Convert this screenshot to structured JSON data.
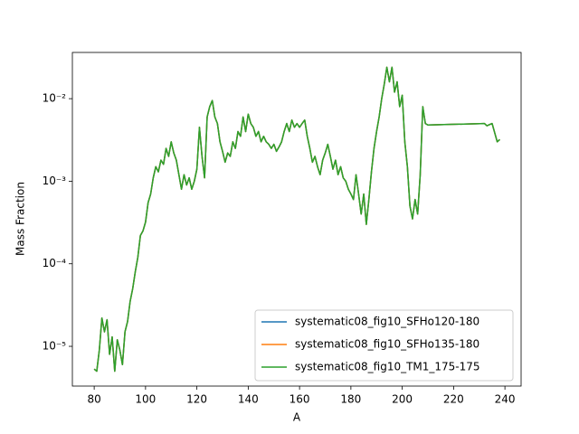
{
  "chart_data": {
    "type": "line",
    "x_label": "A",
    "y_label": "Mass Fraction",
    "yscale": "log",
    "legend": "lower right",
    "xlim": [
      71.5,
      246.3
    ],
    "ylim": [
      3.3e-06,
      0.0363
    ],
    "xticks": [
      80,
      100,
      120,
      140,
      160,
      180,
      200,
      220,
      240
    ],
    "yticks": [
      {
        "value": 1e-05,
        "label": "10⁻⁵"
      },
      {
        "value": 0.0001,
        "label": "10⁻⁴"
      },
      {
        "value": 0.001,
        "label": "10⁻³"
      },
      {
        "value": 0.01,
        "label": "10⁻²"
      }
    ],
    "x": [
      80,
      81,
      82,
      83,
      84,
      85,
      86,
      87,
      88,
      89,
      90,
      91,
      92,
      93,
      94,
      95,
      96,
      97,
      98,
      99,
      100,
      101,
      102,
      103,
      104,
      105,
      106,
      107,
      108,
      109,
      110,
      111,
      112,
      113,
      114,
      115,
      116,
      117,
      118,
      119,
      120,
      121,
      122,
      123,
      124,
      125,
      126,
      127,
      128,
      129,
      130,
      131,
      132,
      133,
      134,
      135,
      136,
      137,
      138,
      139,
      140,
      141,
      142,
      143,
      144,
      145,
      146,
      147,
      148,
      149,
      150,
      151,
      152,
      153,
      154,
      155,
      156,
      157,
      158,
      159,
      160,
      161,
      162,
      163,
      164,
      165,
      166,
      167,
      168,
      169,
      170,
      171,
      172,
      173,
      174,
      175,
      176,
      177,
      178,
      179,
      180,
      181,
      182,
      183,
      184,
      185,
      186,
      187,
      188,
      189,
      190,
      191,
      192,
      193,
      194,
      195,
      196,
      197,
      198,
      199,
      200,
      201,
      202,
      203,
      204,
      205,
      206,
      207,
      208,
      209,
      210,
      232,
      233,
      235,
      237,
      238
    ],
    "series": [
      {
        "name": "systematic08_fig10_SFHo120-180",
        "color": "#1f77b4",
        "values": [
          5.3e-06,
          5e-06,
          9e-06,
          2.2e-05,
          1.5e-05,
          2.1e-05,
          8e-06,
          1.3e-05,
          5e-06,
          1.2e-05,
          9e-06,
          6e-06,
          1.5e-05,
          2e-05,
          3.5e-05,
          5e-05,
          8e-05,
          0.00012,
          0.00022,
          0.00025,
          0.00032,
          0.00055,
          0.0007,
          0.0011,
          0.0015,
          0.0013,
          0.0018,
          0.0016,
          0.0025,
          0.002,
          0.003,
          0.0022,
          0.0018,
          0.0012,
          0.0008,
          0.0012,
          0.0009,
          0.0011,
          0.0008,
          0.001,
          0.0014,
          0.0045,
          0.002,
          0.0011,
          0.006,
          0.008,
          0.0095,
          0.006,
          0.005,
          0.003,
          0.0023,
          0.0017,
          0.0022,
          0.002,
          0.003,
          0.0025,
          0.004,
          0.0035,
          0.006,
          0.004,
          0.0065,
          0.005,
          0.0045,
          0.0035,
          0.004,
          0.003,
          0.0035,
          0.003,
          0.0028,
          0.0025,
          0.0028,
          0.0023,
          0.0026,
          0.003,
          0.004,
          0.005,
          0.004,
          0.0055,
          0.0045,
          0.005,
          0.0045,
          0.005,
          0.0055,
          0.0035,
          0.0025,
          0.0017,
          0.002,
          0.0015,
          0.0012,
          0.0018,
          0.0022,
          0.0028,
          0.002,
          0.0014,
          0.0018,
          0.0012,
          0.0015,
          0.0011,
          0.001,
          0.0008,
          0.0007,
          0.0006,
          0.0012,
          0.0007,
          0.0004,
          0.0007,
          0.0003,
          0.0006,
          0.0013,
          0.0025,
          0.004,
          0.006,
          0.01,
          0.015,
          0.024,
          0.016,
          0.024,
          0.012,
          0.016,
          0.008,
          0.011,
          0.003,
          0.0015,
          0.0005,
          0.00035,
          0.0006,
          0.0004,
          0.0012,
          0.008,
          0.005,
          0.0048,
          0.005,
          0.0047,
          0.005,
          0.003,
          0.0032
        ]
      },
      {
        "name": "systematic08_fig10_SFHo135-180",
        "color": "#ff7f0e",
        "values": [
          5.3e-06,
          5e-06,
          9e-06,
          2.2e-05,
          1.5e-05,
          2.1e-05,
          8e-06,
          1.3e-05,
          5e-06,
          1.2e-05,
          9e-06,
          6e-06,
          1.5e-05,
          2e-05,
          3.5e-05,
          5e-05,
          8e-05,
          0.00012,
          0.00022,
          0.00025,
          0.00032,
          0.00055,
          0.0007,
          0.0011,
          0.0015,
          0.0013,
          0.0018,
          0.0016,
          0.0025,
          0.002,
          0.003,
          0.0022,
          0.0018,
          0.0012,
          0.0008,
          0.0012,
          0.0009,
          0.0011,
          0.0008,
          0.001,
          0.0014,
          0.0045,
          0.002,
          0.0011,
          0.006,
          0.008,
          0.0095,
          0.006,
          0.005,
          0.003,
          0.0023,
          0.0017,
          0.0022,
          0.002,
          0.003,
          0.0025,
          0.004,
          0.0035,
          0.006,
          0.004,
          0.0065,
          0.005,
          0.0045,
          0.0035,
          0.004,
          0.003,
          0.0035,
          0.003,
          0.0028,
          0.0025,
          0.0028,
          0.0023,
          0.0026,
          0.003,
          0.004,
          0.005,
          0.004,
          0.0055,
          0.0045,
          0.005,
          0.0045,
          0.005,
          0.0055,
          0.0035,
          0.0025,
          0.0017,
          0.002,
          0.0015,
          0.0012,
          0.0018,
          0.0022,
          0.0028,
          0.002,
          0.0014,
          0.0018,
          0.0012,
          0.0015,
          0.0011,
          0.001,
          0.0008,
          0.0007,
          0.0006,
          0.0012,
          0.0007,
          0.0004,
          0.0007,
          0.0003,
          0.0006,
          0.0013,
          0.0025,
          0.004,
          0.006,
          0.01,
          0.015,
          0.024,
          0.016,
          0.024,
          0.012,
          0.016,
          0.008,
          0.011,
          0.003,
          0.0015,
          0.0005,
          0.00035,
          0.0006,
          0.0004,
          0.0012,
          0.008,
          0.005,
          0.0048,
          0.005,
          0.0047,
          0.005,
          0.003,
          0.0032
        ]
      },
      {
        "name": "systematic08_fig10_TM1_175-175",
        "color": "#2ca02c",
        "values": [
          5.3e-06,
          5e-06,
          9e-06,
          2.2e-05,
          1.5e-05,
          2.1e-05,
          8e-06,
          1.3e-05,
          5e-06,
          1.2e-05,
          9e-06,
          6e-06,
          1.5e-05,
          2e-05,
          3.5e-05,
          5e-05,
          8e-05,
          0.00012,
          0.00022,
          0.00025,
          0.00032,
          0.00055,
          0.0007,
          0.0011,
          0.0015,
          0.0013,
          0.0018,
          0.0016,
          0.0025,
          0.002,
          0.003,
          0.0022,
          0.0018,
          0.0012,
          0.0008,
          0.0012,
          0.0009,
          0.0011,
          0.0008,
          0.001,
          0.0014,
          0.0045,
          0.002,
          0.0011,
          0.006,
          0.008,
          0.0095,
          0.006,
          0.005,
          0.003,
          0.0023,
          0.0017,
          0.0022,
          0.002,
          0.003,
          0.0025,
          0.004,
          0.0035,
          0.006,
          0.004,
          0.0065,
          0.005,
          0.0045,
          0.0035,
          0.004,
          0.003,
          0.0035,
          0.003,
          0.0028,
          0.0025,
          0.0028,
          0.0023,
          0.0026,
          0.003,
          0.004,
          0.005,
          0.004,
          0.0055,
          0.0045,
          0.005,
          0.0045,
          0.005,
          0.0055,
          0.0035,
          0.0025,
          0.0017,
          0.002,
          0.0015,
          0.0012,
          0.0018,
          0.0022,
          0.0028,
          0.002,
          0.0014,
          0.0018,
          0.0012,
          0.0015,
          0.0011,
          0.001,
          0.0008,
          0.0007,
          0.0006,
          0.0012,
          0.0007,
          0.0004,
          0.0007,
          0.0003,
          0.0006,
          0.0013,
          0.0025,
          0.004,
          0.006,
          0.01,
          0.015,
          0.024,
          0.016,
          0.024,
          0.012,
          0.016,
          0.008,
          0.011,
          0.003,
          0.0015,
          0.0005,
          0.00035,
          0.0006,
          0.0004,
          0.0012,
          0.008,
          0.005,
          0.0048,
          0.005,
          0.0047,
          0.005,
          0.003,
          0.0032
        ]
      }
    ]
  }
}
